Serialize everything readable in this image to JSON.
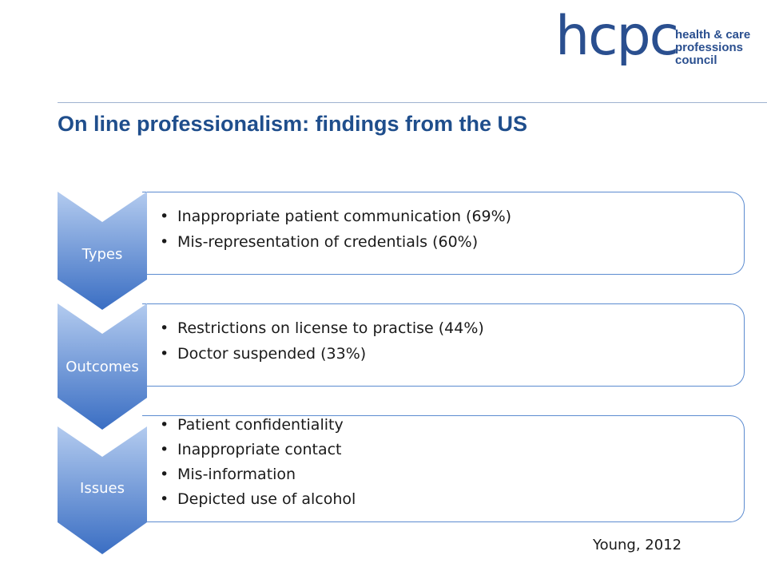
{
  "logo": {
    "wordmark": "hcpc",
    "tagline": [
      "health & care",
      "professions",
      "council"
    ]
  },
  "title": "On line professionalism: findings from the US",
  "sections": [
    {
      "label": "Types",
      "bullets": [
        "Inappropriate patient communication (69%)",
        "Mis-representation of credentials (60%)"
      ]
    },
    {
      "label": "Outcomes",
      "bullets": [
        "Restrictions on license to practise (44%)",
        "Doctor suspended (33%)"
      ]
    },
    {
      "label": "Issues",
      "bullets": [
        "Patient confidentiality",
        "Inappropriate contact",
        "Mis-information",
        "Depicted use of alcohol"
      ]
    }
  ],
  "citation": "Young, 2012",
  "colors": {
    "brand": "#2a4f8f",
    "title": "#1f4e8c",
    "chevron_top": "#a9c4ec",
    "chevron_bottom": "#3b6fc4",
    "box_border": "#5b8bd0"
  }
}
